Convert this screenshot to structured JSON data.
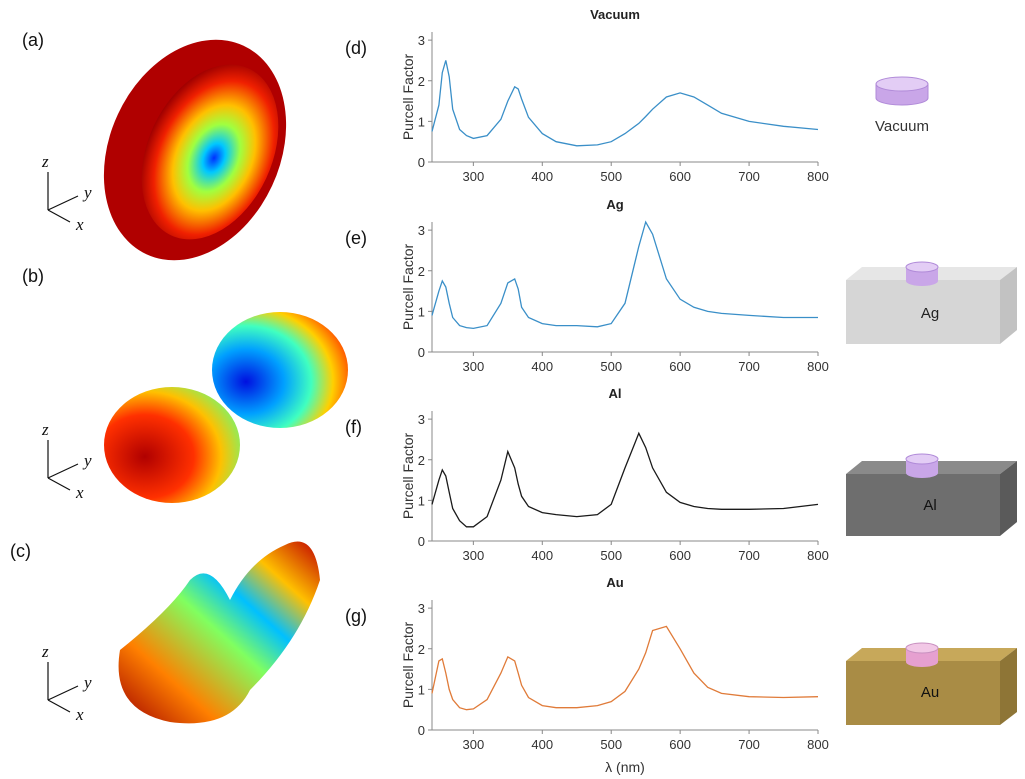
{
  "figure": {
    "panels": [
      {
        "label": "(a)",
        "axes": [
          "z",
          "y",
          "x"
        ]
      },
      {
        "label": "(b)",
        "axes": [
          "z",
          "y",
          "x"
        ]
      },
      {
        "label": "(c)",
        "axes": [
          "z",
          "y",
          "x"
        ]
      }
    ]
  },
  "chart_data": [
    {
      "type": "line",
      "panel_label": "(d)",
      "title": "Vacuum",
      "ylabel": "Purcell Factor",
      "inset_label": "Vacuum",
      "x": [
        240,
        250,
        255,
        260,
        265,
        270,
        280,
        290,
        300,
        320,
        340,
        350,
        360,
        365,
        370,
        380,
        400,
        420,
        450,
        480,
        500,
        520,
        540,
        550,
        560,
        580,
        600,
        620,
        640,
        660,
        700,
        750,
        800
      ],
      "series": [
        {
          "name": "Vacuum",
          "color": "#3a8fc8",
          "values": [
            0.75,
            1.4,
            2.2,
            2.5,
            2.1,
            1.3,
            0.8,
            0.65,
            0.58,
            0.65,
            1.05,
            1.5,
            1.85,
            1.8,
            1.55,
            1.1,
            0.7,
            0.5,
            0.4,
            0.42,
            0.5,
            0.7,
            0.95,
            1.12,
            1.3,
            1.6,
            1.7,
            1.6,
            1.4,
            1.2,
            1.0,
            0.88,
            0.8
          ]
        }
      ],
      "xlim": [
        240,
        800
      ],
      "xticks": [
        300,
        400,
        500,
        600,
        700,
        800
      ],
      "ylim": [
        0,
        3.2
      ],
      "yticks": [
        0,
        1,
        2,
        3
      ]
    },
    {
      "type": "line",
      "panel_label": "(e)",
      "title": "Ag",
      "ylabel": "Purcell Factor",
      "inset_label": "Ag",
      "x": [
        240,
        250,
        255,
        260,
        265,
        270,
        280,
        290,
        300,
        320,
        340,
        350,
        360,
        365,
        370,
        380,
        400,
        420,
        450,
        480,
        500,
        520,
        540,
        550,
        560,
        580,
        600,
        620,
        640,
        660,
        700,
        750,
        800
      ],
      "series": [
        {
          "name": "Ag",
          "color": "#3a8fc8",
          "values": [
            0.9,
            1.5,
            1.75,
            1.6,
            1.2,
            0.85,
            0.65,
            0.6,
            0.58,
            0.65,
            1.2,
            1.7,
            1.8,
            1.55,
            1.1,
            0.85,
            0.7,
            0.65,
            0.65,
            0.62,
            0.7,
            1.2,
            2.6,
            3.2,
            2.9,
            1.8,
            1.3,
            1.1,
            1.0,
            0.95,
            0.9,
            0.85,
            0.85
          ]
        }
      ],
      "xlim": [
        240,
        800
      ],
      "xticks": [
        300,
        400,
        500,
        600,
        700,
        800
      ],
      "ylim": [
        0,
        3.2
      ],
      "yticks": [
        0,
        1,
        2,
        3
      ]
    },
    {
      "type": "line",
      "panel_label": "(f)",
      "title": "Al",
      "ylabel": "Purcell Factor",
      "inset_label": "Al",
      "x": [
        240,
        250,
        255,
        260,
        265,
        270,
        280,
        290,
        300,
        320,
        340,
        350,
        360,
        365,
        370,
        380,
        400,
        420,
        450,
        480,
        500,
        520,
        540,
        550,
        560,
        580,
        600,
        620,
        640,
        660,
        700,
        750,
        800
      ],
      "series": [
        {
          "name": "Al",
          "color": "#1a1a1a",
          "values": [
            0.9,
            1.5,
            1.75,
            1.6,
            1.2,
            0.8,
            0.5,
            0.35,
            0.35,
            0.6,
            1.5,
            2.2,
            1.8,
            1.4,
            1.1,
            0.85,
            0.7,
            0.65,
            0.6,
            0.65,
            0.9,
            1.8,
            2.65,
            2.3,
            1.8,
            1.2,
            0.95,
            0.85,
            0.8,
            0.78,
            0.78,
            0.8,
            0.9
          ]
        }
      ],
      "xlim": [
        240,
        800
      ],
      "xticks": [
        300,
        400,
        500,
        600,
        700,
        800
      ],
      "ylim": [
        0,
        3.2
      ],
      "yticks": [
        0,
        1,
        2,
        3
      ]
    },
    {
      "type": "line",
      "panel_label": "(g)",
      "title": "Au",
      "ylabel": "Purcell Factor",
      "inset_label": "Au",
      "xlabel": "λ (nm)",
      "x": [
        240,
        250,
        255,
        260,
        265,
        270,
        280,
        290,
        300,
        320,
        340,
        350,
        360,
        365,
        370,
        380,
        400,
        420,
        450,
        480,
        500,
        520,
        540,
        550,
        560,
        580,
        600,
        620,
        640,
        660,
        700,
        750,
        800
      ],
      "series": [
        {
          "name": "Au",
          "color": "#e07b39",
          "values": [
            0.9,
            1.7,
            1.75,
            1.4,
            1.0,
            0.75,
            0.55,
            0.5,
            0.52,
            0.75,
            1.4,
            1.8,
            1.7,
            1.4,
            1.1,
            0.8,
            0.6,
            0.55,
            0.55,
            0.6,
            0.7,
            0.95,
            1.5,
            1.9,
            2.45,
            2.55,
            2.0,
            1.4,
            1.05,
            0.9,
            0.82,
            0.8,
            0.82
          ]
        }
      ],
      "xlim": [
        240,
        800
      ],
      "xticks": [
        300,
        400,
        500,
        600,
        700,
        800
      ],
      "ylim": [
        0,
        3.2
      ],
      "yticks": [
        0,
        1,
        2,
        3
      ]
    }
  ]
}
